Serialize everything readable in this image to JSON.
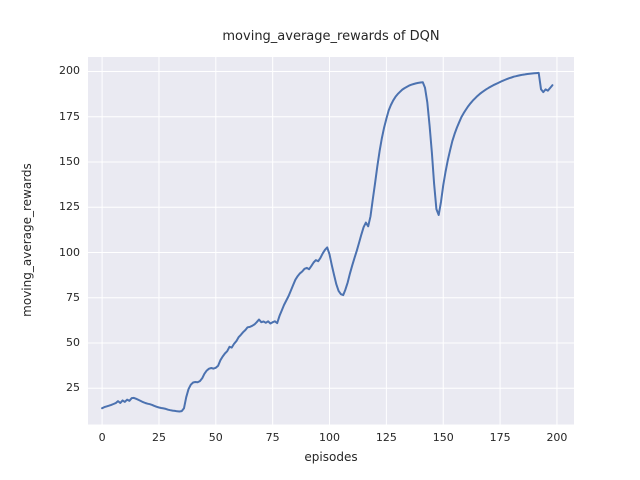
{
  "figure": {
    "title": "moving_average_rewards of DQN"
  },
  "chart_data": {
    "type": "line",
    "title": "moving_average_rewards of DQN",
    "xlabel": "episodes",
    "ylabel": "moving_average_rewards",
    "x_ticks": [
      0,
      25,
      50,
      75,
      100,
      125,
      150,
      175,
      200
    ],
    "y_ticks": [
      25,
      50,
      75,
      100,
      125,
      150,
      175,
      200
    ],
    "xlim": [
      -6.2,
      207.5
    ],
    "ylim": [
      5,
      208
    ],
    "grid": true,
    "legend_position": "none",
    "style": {
      "axes_background": "#eaeaf2",
      "grid_color": "#ffffff",
      "line_color": "#4c72b0",
      "text_color": "#262626",
      "line_width": 2
    },
    "series": [
      {
        "name": "moving_average_rewards",
        "color": "#4c72b0",
        "points": [
          [
            0,
            14
          ],
          [
            1,
            14.6
          ],
          [
            2,
            15
          ],
          [
            3,
            15.4
          ],
          [
            4,
            15.8
          ],
          [
            5,
            16.3
          ],
          [
            6,
            16.8
          ],
          [
            7,
            17.9
          ],
          [
            8,
            16.9
          ],
          [
            9,
            18.3
          ],
          [
            10,
            17.5
          ],
          [
            11,
            18.7
          ],
          [
            12,
            18.1
          ],
          [
            13,
            19.6
          ],
          [
            14,
            19.7
          ],
          [
            15,
            19.2
          ],
          [
            16,
            18.6
          ],
          [
            17,
            18
          ],
          [
            18,
            17.4
          ],
          [
            19,
            16.9
          ],
          [
            20,
            16.5
          ],
          [
            21,
            16.2
          ],
          [
            22,
            15.8
          ],
          [
            23,
            15.3
          ],
          [
            24,
            14.8
          ],
          [
            25,
            14.4
          ],
          [
            26,
            14.1
          ],
          [
            27,
            13.9
          ],
          [
            28,
            13.6
          ],
          [
            29,
            13.2
          ],
          [
            30,
            12.9
          ],
          [
            31,
            12.7
          ],
          [
            32,
            12.5
          ],
          [
            33,
            12.3
          ],
          [
            34,
            12.2
          ],
          [
            35,
            12.4
          ],
          [
            36,
            14
          ],
          [
            37,
            20
          ],
          [
            38,
            24.5
          ],
          [
            39,
            27
          ],
          [
            40,
            28.2
          ],
          [
            41,
            28.5
          ],
          [
            42,
            28.3
          ],
          [
            43,
            29
          ],
          [
            44,
            30.5
          ],
          [
            45,
            33
          ],
          [
            46,
            34.8
          ],
          [
            47,
            35.8
          ],
          [
            48,
            36.2
          ],
          [
            49,
            35.9
          ],
          [
            50,
            36.3
          ],
          [
            51,
            37.5
          ],
          [
            52,
            40.5
          ],
          [
            53,
            42.5
          ],
          [
            54,
            44.2
          ],
          [
            55,
            45.5
          ],
          [
            56,
            47.9
          ],
          [
            57,
            47.5
          ],
          [
            58,
            49.5
          ],
          [
            59,
            51
          ],
          [
            60,
            53.2
          ],
          [
            61,
            54.5
          ],
          [
            62,
            56
          ],
          [
            63,
            57.2
          ],
          [
            64,
            58.7
          ],
          [
            65,
            58.9
          ],
          [
            66,
            59.5
          ],
          [
            67,
            60.3
          ],
          [
            68,
            61.5
          ],
          [
            69,
            63
          ],
          [
            70,
            61.5
          ],
          [
            71,
            61.9
          ],
          [
            72,
            61.2
          ],
          [
            73,
            62
          ],
          [
            74,
            60.8
          ],
          [
            75,
            61.5
          ],
          [
            76,
            62
          ],
          [
            77,
            61
          ],
          [
            78,
            65
          ],
          [
            79,
            68
          ],
          [
            80,
            71
          ],
          [
            81,
            73.5
          ],
          [
            82,
            76
          ],
          [
            83,
            79
          ],
          [
            84,
            82
          ],
          [
            85,
            85
          ],
          [
            86,
            87
          ],
          [
            87,
            88.5
          ],
          [
            88,
            89.5
          ],
          [
            89,
            91
          ],
          [
            90,
            91.5
          ],
          [
            91,
            90.8
          ],
          [
            92,
            92.5
          ],
          [
            93,
            94.5
          ],
          [
            94,
            95.8
          ],
          [
            95,
            95.2
          ],
          [
            96,
            97
          ],
          [
            97,
            99.5
          ],
          [
            98,
            101.5
          ],
          [
            99,
            102.8
          ],
          [
            100,
            99
          ],
          [
            101,
            93
          ],
          [
            102,
            87.5
          ],
          [
            103,
            82.5
          ],
          [
            104,
            78.8
          ],
          [
            105,
            77
          ],
          [
            106,
            76.5
          ],
          [
            107,
            79.5
          ],
          [
            108,
            83.5
          ],
          [
            109,
            88.5
          ],
          [
            110,
            93
          ],
          [
            111,
            97
          ],
          [
            112,
            101
          ],
          [
            113,
            105.5
          ],
          [
            114,
            110
          ],
          [
            115,
            114
          ],
          [
            116,
            116.5
          ],
          [
            117,
            114.5
          ],
          [
            118,
            120
          ],
          [
            119,
            129
          ],
          [
            120,
            138
          ],
          [
            121,
            147.5
          ],
          [
            122,
            156
          ],
          [
            123,
            163
          ],
          [
            124,
            169
          ],
          [
            125,
            174
          ],
          [
            126,
            178.5
          ],
          [
            127,
            181.5
          ],
          [
            128,
            184
          ],
          [
            129,
            186
          ],
          [
            130,
            187.5
          ],
          [
            131,
            188.8
          ],
          [
            132,
            190
          ],
          [
            133,
            190.8
          ],
          [
            134,
            191.5
          ],
          [
            135,
            192.2
          ],
          [
            136,
            192.7
          ],
          [
            137,
            193.1
          ],
          [
            138,
            193.4
          ],
          [
            139,
            193.7
          ],
          [
            140,
            193.9
          ],
          [
            141,
            194.1
          ],
          [
            142,
            191
          ],
          [
            143,
            183
          ],
          [
            144,
            170
          ],
          [
            145,
            155
          ],
          [
            146,
            138
          ],
          [
            147,
            124
          ],
          [
            148,
            120.7
          ],
          [
            149,
            128
          ],
          [
            150,
            137
          ],
          [
            151,
            144.5
          ],
          [
            152,
            151
          ],
          [
            153,
            156.5
          ],
          [
            154,
            161.5
          ],
          [
            155,
            165.5
          ],
          [
            156,
            169
          ],
          [
            157,
            172
          ],
          [
            158,
            174.8
          ],
          [
            159,
            177
          ],
          [
            160,
            179
          ],
          [
            161,
            180.8
          ],
          [
            162,
            182.4
          ],
          [
            163,
            183.9
          ],
          [
            164,
            185.2
          ],
          [
            165,
            186.4
          ],
          [
            166,
            187.5
          ],
          [
            167,
            188.5
          ],
          [
            168,
            189.4
          ],
          [
            169,
            190.2
          ],
          [
            170,
            191
          ],
          [
            171,
            191.7
          ],
          [
            172,
            192.4
          ],
          [
            173,
            193
          ],
          [
            174,
            193.6
          ],
          [
            175,
            194.2
          ],
          [
            176,
            194.8
          ],
          [
            177,
            195.3
          ],
          [
            178,
            195.8
          ],
          [
            179,
            196.3
          ],
          [
            180,
            196.7
          ],
          [
            181,
            197.1
          ],
          [
            182,
            197.4
          ],
          [
            183,
            197.7
          ],
          [
            184,
            198
          ],
          [
            185,
            198.2
          ],
          [
            186,
            198.4
          ],
          [
            187,
            198.6
          ],
          [
            188,
            198.8
          ],
          [
            189,
            198.9
          ],
          [
            190,
            199
          ],
          [
            191,
            199.1
          ],
          [
            192,
            199.2
          ],
          [
            193,
            190.2
          ],
          [
            194,
            188.6
          ],
          [
            195,
            190.1
          ],
          [
            196,
            189.4
          ],
          [
            197,
            190.9
          ],
          [
            198,
            192.4
          ]
        ]
      }
    ]
  }
}
